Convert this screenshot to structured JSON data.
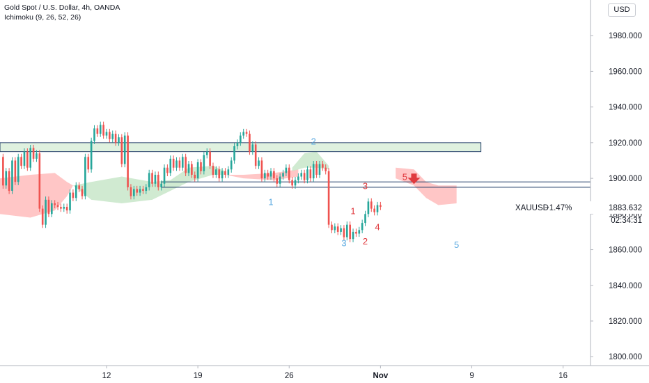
{
  "header": {
    "title": "Gold Spot / U.S. Dollar, 4h, OANDA",
    "indicator": "Ichimoku (9, 26, 52, 26)",
    "currency": "USD"
  },
  "price_tag": {
    "symbol": "XAUUSD",
    "change": "−1.47%",
    "last_price": "1883.632",
    "countdown": "02:34:31"
  },
  "chart_data": {
    "type": "candlestick",
    "symbol": "XAUUSD",
    "interval": "4h",
    "y_axis": {
      "range": [
        1795,
        2000
      ],
      "ticks": [
        1800,
        1820,
        1840,
        1860,
        1880,
        1900,
        1920,
        1940,
        1960,
        1980
      ],
      "tick_labels": [
        "1800.000",
        "1820.000",
        "1840.000",
        "1860.000",
        "1880.000",
        "1900.000",
        "1920.000",
        "1940.000",
        "1960.000",
        "1980.000"
      ],
      "side": "right"
    },
    "x_axis": {
      "tick_labels": [
        "12",
        "19",
        "26",
        "Nov",
        "9",
        "16"
      ],
      "tick_index": [
        35,
        65,
        95,
        125,
        155,
        185
      ],
      "range_index": [
        0,
        194
      ]
    },
    "colors": {
      "up": "#26a69a",
      "down": "#ef5350",
      "cloud_bull": "#c8e6c9",
      "cloud_bear": "#ffbcbc",
      "zone_border": "#1f3b66"
    },
    "candles": [
      [
        1,
        1912,
        1896
      ],
      [
        2,
        1896,
        1904
      ],
      [
        3,
        1904,
        1893
      ],
      [
        4,
        1893,
        1910
      ],
      [
        5,
        1910,
        1898
      ],
      [
        6,
        1898,
        1912
      ],
      [
        7,
        1912,
        1907
      ],
      [
        8,
        1907,
        1915
      ],
      [
        9,
        1915,
        1906
      ],
      [
        10,
        1906,
        1917
      ],
      [
        11,
        1917,
        1911
      ],
      [
        12,
        1911,
        1914
      ],
      [
        13,
        1914,
        1883
      ],
      [
        14,
        1883,
        1874
      ],
      [
        15,
        1874,
        1888
      ],
      [
        16,
        1888,
        1880
      ],
      [
        17,
        1880,
        1886
      ],
      [
        18,
        1886,
        1885
      ],
      [
        19,
        1885,
        1884
      ],
      [
        20,
        1884,
        1883
      ],
      [
        21,
        1883,
        1884
      ],
      [
        22,
        1884,
        1882
      ],
      [
        23,
        1882,
        1892
      ],
      [
        24,
        1892,
        1889
      ],
      [
        25,
        1889,
        1896
      ],
      [
        26,
        1896,
        1894
      ],
      [
        27,
        1894,
        1890
      ],
      [
        28,
        1890,
        1912
      ],
      [
        29,
        1912,
        1905
      ],
      [
        30,
        1905,
        1921
      ],
      [
        31,
        1921,
        1928
      ],
      [
        32,
        1928,
        1925
      ],
      [
        33,
        1925,
        1930
      ],
      [
        34,
        1930,
        1924
      ],
      [
        35,
        1924,
        1926
      ],
      [
        36,
        1926,
        1922
      ],
      [
        37,
        1922,
        1925
      ],
      [
        38,
        1925,
        1920
      ],
      [
        39,
        1920,
        1923
      ],
      [
        40,
        1923,
        1908
      ],
      [
        41,
        1908,
        1924
      ],
      [
        42,
        1924,
        1895
      ],
      [
        43,
        1895,
        1890
      ],
      [
        44,
        1890,
        1894
      ],
      [
        45,
        1894,
        1892
      ],
      [
        46,
        1892,
        1894
      ],
      [
        47,
        1894,
        1893
      ],
      [
        48,
        1893,
        1895
      ],
      [
        49,
        1895,
        1903
      ],
      [
        50,
        1903,
        1897
      ],
      [
        51,
        1897,
        1902
      ],
      [
        52,
        1902,
        1895
      ],
      [
        53,
        1895,
        1897
      ],
      [
        54,
        1897,
        1906
      ],
      [
        55,
        1906,
        1903
      ],
      [
        56,
        1903,
        1911
      ],
      [
        57,
        1911,
        1906
      ],
      [
        58,
        1906,
        1910
      ],
      [
        59,
        1910,
        1906
      ],
      [
        60,
        1906,
        1912
      ],
      [
        61,
        1912,
        1903
      ],
      [
        62,
        1903,
        1908
      ],
      [
        63,
        1908,
        1902
      ],
      [
        64,
        1902,
        1900
      ],
      [
        65,
        1900,
        1909
      ],
      [
        66,
        1909,
        1904
      ],
      [
        67,
        1904,
        1913
      ],
      [
        68,
        1913,
        1915
      ],
      [
        69,
        1915,
        1907
      ],
      [
        70,
        1907,
        1902
      ],
      [
        71,
        1902,
        1905
      ],
      [
        72,
        1905,
        1900
      ],
      [
        73,
        1900,
        1904
      ],
      [
        74,
        1904,
        1902
      ],
      [
        75,
        1902,
        1905
      ],
      [
        76,
        1905,
        1910
      ],
      [
        77,
        1910,
        1918
      ],
      [
        78,
        1918,
        1920
      ],
      [
        79,
        1920,
        1924
      ],
      [
        80,
        1924,
        1926
      ],
      [
        81,
        1926,
        1925
      ],
      [
        82,
        1925,
        1915
      ],
      [
        83,
        1915,
        1919
      ],
      [
        84,
        1919,
        1907
      ],
      [
        85,
        1907,
        1910
      ],
      [
        86,
        1910,
        1900
      ],
      [
        87,
        1900,
        1903
      ],
      [
        88,
        1903,
        1901
      ],
      [
        89,
        1901,
        1904
      ],
      [
        90,
        1904,
        1900
      ],
      [
        91,
        1900,
        1897
      ],
      [
        92,
        1897,
        1901
      ],
      [
        93,
        1901,
        1903
      ],
      [
        94,
        1903,
        1906
      ],
      [
        95,
        1906,
        1899
      ],
      [
        96,
        1899,
        1896
      ],
      [
        97,
        1896,
        1899
      ],
      [
        98,
        1899,
        1901
      ],
      [
        99,
        1901,
        1903
      ],
      [
        100,
        1903,
        1899
      ],
      [
        101,
        1899,
        1905
      ],
      [
        102,
        1905,
        1900
      ],
      [
        103,
        1900,
        1908
      ],
      [
        104,
        1908,
        1902
      ],
      [
        105,
        1902,
        1908
      ],
      [
        106,
        1908,
        1906
      ],
      [
        107,
        1906,
        1904
      ],
      [
        108,
        1904,
        1874
      ],
      [
        109,
        1874,
        1871
      ],
      [
        110,
        1871,
        1873
      ],
      [
        111,
        1873,
        1870
      ],
      [
        112,
        1870,
        1872
      ],
      [
        113,
        1872,
        1867
      ],
      [
        114,
        1867,
        1874
      ],
      [
        115,
        1874,
        1866
      ],
      [
        116,
        1866,
        1870
      ],
      [
        117,
        1870,
        1869
      ],
      [
        118,
        1869,
        1871
      ],
      [
        119,
        1871,
        1875
      ],
      [
        120,
        1875,
        1880
      ],
      [
        121,
        1880,
        1887
      ],
      [
        122,
        1887,
        1883
      ],
      [
        123,
        1883,
        1881
      ],
      [
        124,
        1881,
        1885
      ],
      [
        125,
        1885,
        1884
      ]
    ],
    "zones": [
      {
        "x": [
          0,
          158
        ],
        "y": [
          1915,
          1920
        ],
        "fill": "#dff1df"
      },
      {
        "x": [
          53,
          194
        ],
        "y": [
          1895,
          1898
        ],
        "fill": "#ffffff"
      }
    ],
    "annotations": [
      {
        "text": "1",
        "x": 89,
        "y": 1885,
        "color": "blue"
      },
      {
        "text": "2",
        "x": 103,
        "y": 1919,
        "color": "blue"
      },
      {
        "text": "3",
        "x": 113,
        "y": 1862,
        "color": "blue"
      },
      {
        "text": "5",
        "x": 150,
        "y": 1861,
        "color": "blue"
      },
      {
        "text": "1",
        "x": 116,
        "y": 1880,
        "color": "red"
      },
      {
        "text": "2",
        "x": 120,
        "y": 1863,
        "color": "red"
      },
      {
        "text": "3",
        "x": 120,
        "y": 1894,
        "color": "red"
      },
      {
        "text": "4",
        "x": 124,
        "y": 1871,
        "color": "red"
      },
      {
        "text": "5",
        "x": 133,
        "y": 1899,
        "color": "red"
      }
    ],
    "arrow_down": {
      "x": 136,
      "y": 1898
    }
  }
}
